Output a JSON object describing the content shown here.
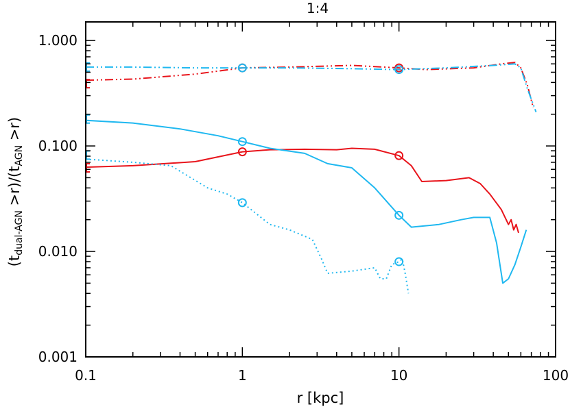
{
  "chart_data": {
    "type": "line",
    "title": "1:4",
    "xlabel": "r [kpc]",
    "ylabel": {
      "open": "(t",
      "sub1": "dual-AGN",
      "mid": " >r)/(t",
      "sub2": "AGN",
      "close": " >r)"
    },
    "x_scale": "log",
    "y_scale": "log",
    "xlim": [
      0.1,
      100
    ],
    "ylim": [
      0.001,
      1.5
    ],
    "x_ticks": [
      {
        "value": 0.1,
        "label": "0.1"
      },
      {
        "value": 1,
        "label": "1"
      },
      {
        "value": 10,
        "label": "10"
      },
      {
        "value": 100,
        "label": "100"
      }
    ],
    "y_ticks": [
      {
        "value": 0.001,
        "label": "0.001"
      },
      {
        "value": 0.01,
        "label": "0.010"
      },
      {
        "value": 0.1,
        "label": "0.100"
      },
      {
        "value": 1,
        "label": "1.000"
      }
    ],
    "colors": {
      "red": "#e8141b",
      "cyan": "#1fb8f0"
    },
    "series": [
      {
        "color": "red",
        "style": "solid",
        "x": [
          0.1,
          0.2,
          0.5,
          1,
          1.5,
          2.5,
          4,
          5,
          7,
          10,
          12,
          14,
          20,
          28,
          33,
          38,
          45,
          50,
          52,
          54,
          56,
          58
        ],
        "y": [
          0.063,
          0.065,
          0.071,
          0.088,
          0.092,
          0.093,
          0.092,
          0.095,
          0.093,
          0.081,
          0.065,
          0.046,
          0.047,
          0.05,
          0.044,
          0.035,
          0.025,
          0.018,
          0.02,
          0.016,
          0.018,
          0.015
        ],
        "markers_x": [
          1,
          10
        ],
        "markers_y": [
          0.088,
          0.081
        ]
      },
      {
        "color": "red",
        "style": "dashdotdot",
        "x": [
          0.1,
          0.2,
          0.5,
          1,
          2,
          5,
          8,
          10,
          15,
          30,
          45,
          55,
          60,
          66,
          72
        ],
        "y": [
          0.42,
          0.43,
          0.48,
          0.55,
          0.56,
          0.58,
          0.56,
          0.55,
          0.53,
          0.55,
          0.6,
          0.62,
          0.55,
          0.38,
          0.23
        ],
        "markers_x": [
          1,
          10
        ],
        "markers_y": [
          0.55,
          0.55
        ]
      },
      {
        "color": "cyan",
        "style": "solid",
        "x": [
          0.1,
          0.2,
          0.4,
          0.7,
          1,
          1.5,
          2.5,
          3.5,
          5,
          7,
          10,
          12,
          18,
          25,
          30,
          38,
          42,
          46,
          50,
          55,
          60,
          65
        ],
        "y": [
          0.175,
          0.165,
          0.145,
          0.125,
          0.11,
          0.095,
          0.085,
          0.068,
          0.062,
          0.04,
          0.022,
          0.017,
          0.018,
          0.02,
          0.021,
          0.021,
          0.012,
          0.005,
          0.0055,
          0.0075,
          0.011,
          0.016
        ],
        "markers_x": [
          1,
          10
        ],
        "markers_y": [
          0.11,
          0.022
        ]
      },
      {
        "color": "cyan",
        "style": "dashdotdot",
        "x": [
          0.1,
          0.2,
          0.5,
          1,
          2,
          5,
          10,
          20,
          40,
          55,
          60,
          66,
          75
        ],
        "y": [
          0.56,
          0.56,
          0.55,
          0.55,
          0.55,
          0.54,
          0.53,
          0.55,
          0.58,
          0.6,
          0.55,
          0.35,
          0.21
        ],
        "markers_x": [
          1,
          10
        ],
        "markers_y": [
          0.55,
          0.53
        ]
      },
      {
        "color": "cyan",
        "style": "dotted",
        "x": [
          0.1,
          0.2,
          0.35,
          0.6,
          0.8,
          1,
          1.5,
          2,
          2.8,
          3.2,
          3.5,
          5,
          7,
          7.6,
          8.3,
          9,
          10,
          10.5,
          11,
          11.5
        ],
        "y": [
          0.075,
          0.07,
          0.065,
          0.04,
          0.035,
          0.029,
          0.018,
          0.016,
          0.013,
          0.0085,
          0.0062,
          0.0065,
          0.007,
          0.0055,
          0.0055,
          0.0075,
          0.008,
          0.0085,
          0.006,
          0.004
        ],
        "markers_x": [
          1,
          10
        ],
        "markers_y": [
          0.029,
          0.008
        ]
      }
    ],
    "left_edge_markers": [
      {
        "color": "red",
        "y": 0.39
      },
      {
        "color": "red",
        "y": 0.062
      },
      {
        "color": "cyan",
        "y": 0.56
      },
      {
        "color": "cyan",
        "y": 0.18
      },
      {
        "color": "cyan",
        "y": 0.082
      }
    ],
    "grid": false,
    "legend": "none"
  }
}
